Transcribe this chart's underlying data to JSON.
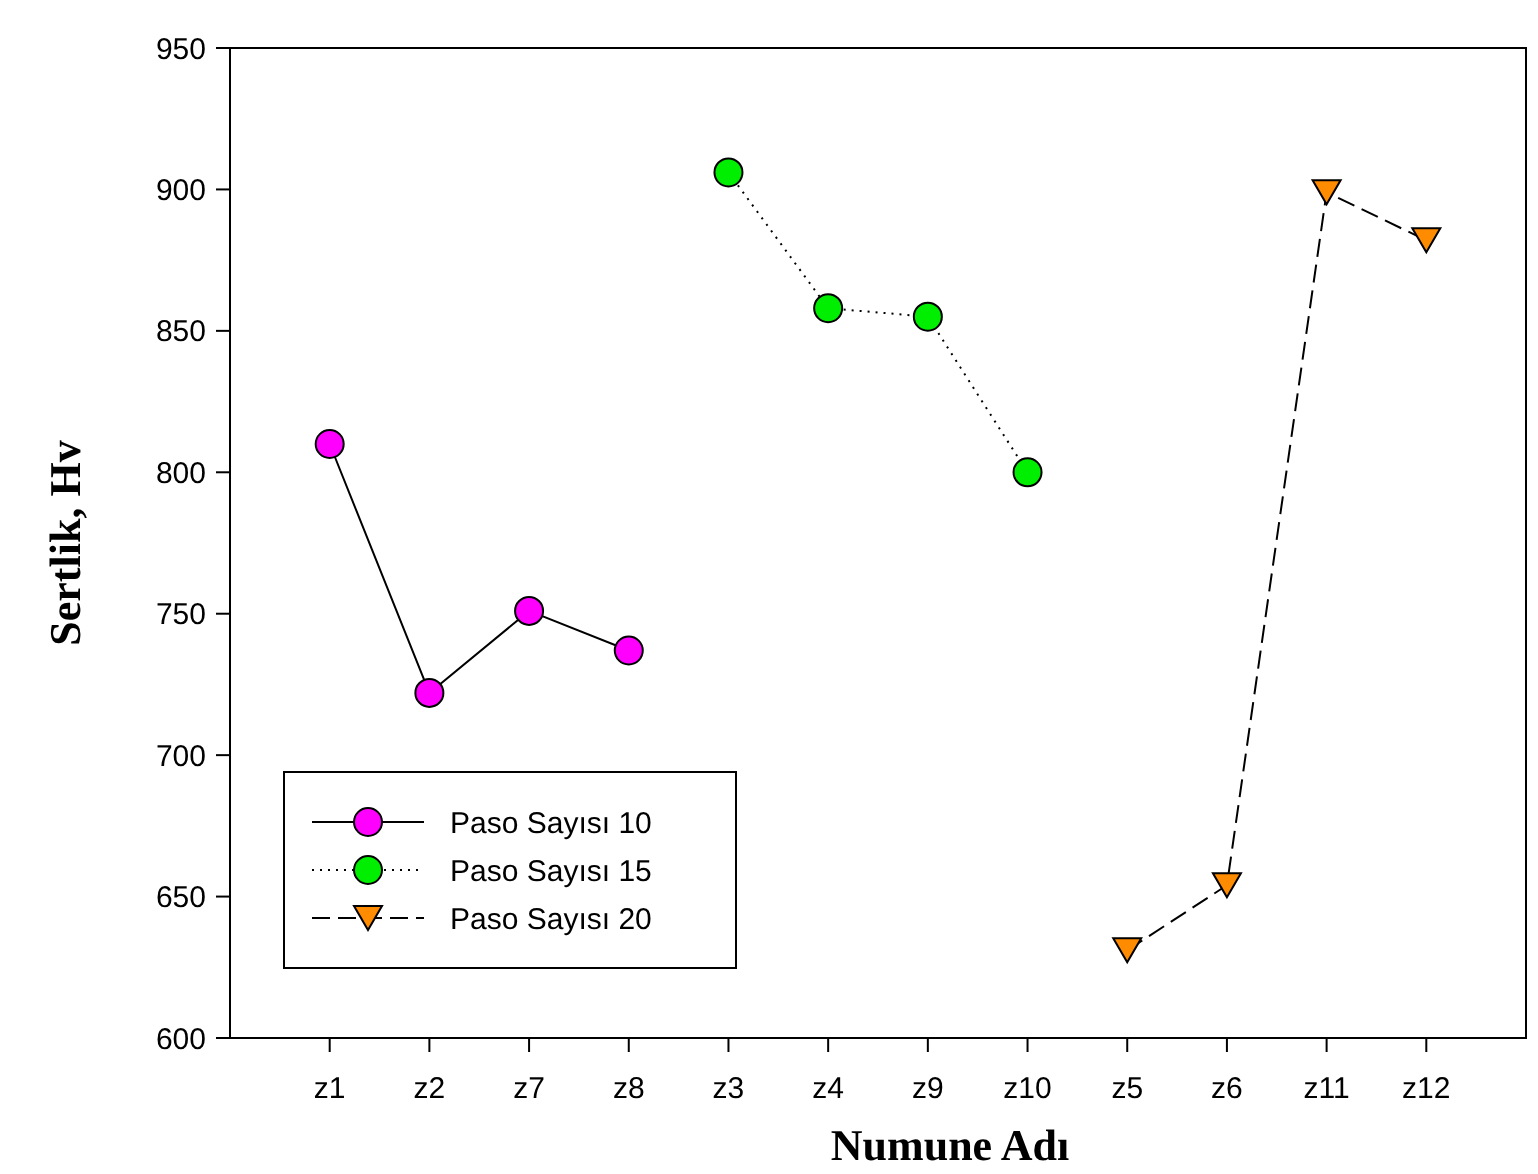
{
  "chart_data": {
    "type": "line",
    "xlabel": "Numune Adı",
    "ylabel": "Sertlik, Hv",
    "categories": [
      "z1",
      "z2",
      "z7",
      "z8",
      "z3",
      "z4",
      "z9",
      "z10",
      "z5",
      "z6",
      "z11",
      "z12"
    ],
    "series": [
      {
        "name": "Paso Sayısı 10",
        "color": "#ff00ff",
        "marker": "circle",
        "line_style": "solid",
        "values": [
          810,
          722,
          751,
          737,
          null,
          null,
          null,
          null,
          null,
          null,
          null,
          null
        ]
      },
      {
        "name": "Paso Sayısı 15",
        "color": "#00ee00",
        "marker": "circle",
        "line_style": "dotted",
        "values": [
          null,
          null,
          null,
          null,
          906,
          858,
          855,
          800,
          null,
          null,
          null,
          null
        ]
      },
      {
        "name": "Paso Sayısı 20",
        "color": "#ff8c00",
        "marker": "triangle",
        "line_style": "dashed",
        "values": [
          null,
          null,
          null,
          null,
          null,
          null,
          null,
          null,
          631,
          654,
          899,
          882
        ]
      }
    ],
    "ylim": [
      600,
      950
    ],
    "yticks": [
      600,
      650,
      700,
      750,
      800,
      850,
      900,
      950
    ],
    "grid": false,
    "legend": "bottom left"
  }
}
